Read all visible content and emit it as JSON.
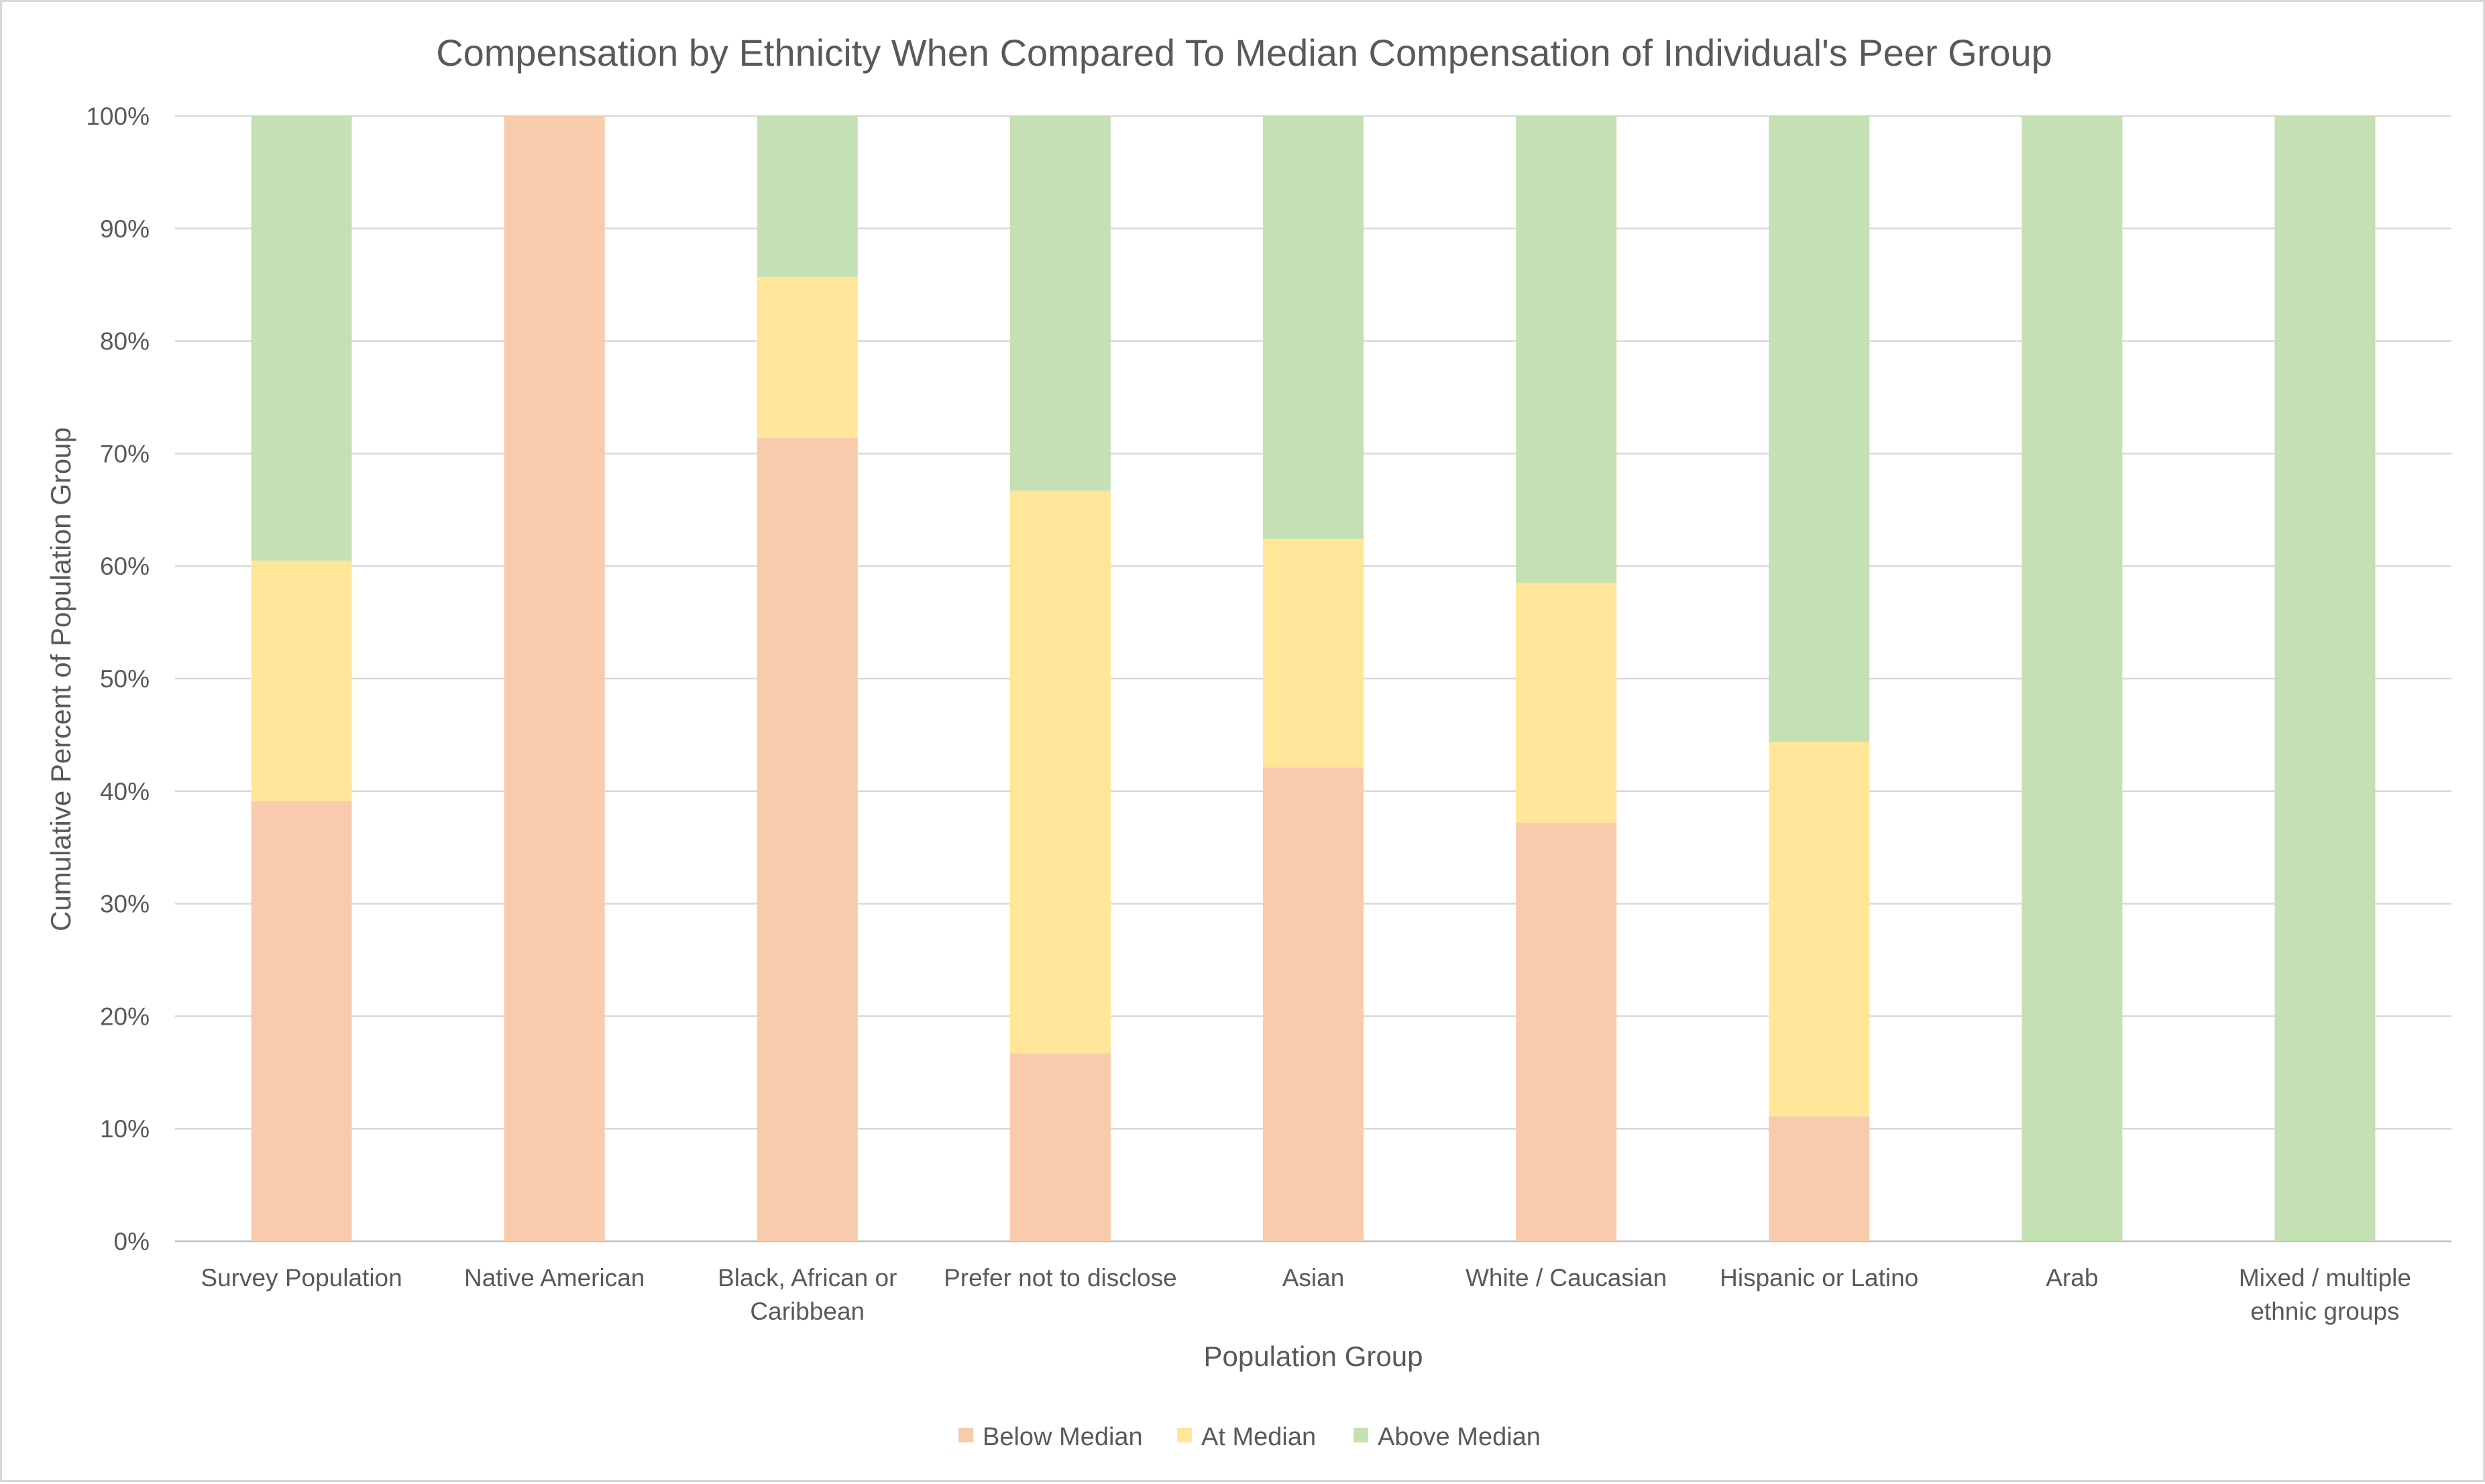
{
  "chart_data": {
    "type": "bar",
    "stacked": true,
    "title": "Compensation by Ethnicity When Compared To Median Compensation of Individual's Peer Group",
    "xlabel": "Population Group",
    "ylabel": "Cumulative Percent of Population Group",
    "ylim": [
      0,
      100
    ],
    "yticks": [
      "0%",
      "10%",
      "20%",
      "30%",
      "40%",
      "50%",
      "60%",
      "70%",
      "80%",
      "90%",
      "100%"
    ],
    "grid": true,
    "legend_position": "bottom",
    "categories": [
      [
        "Survey Population"
      ],
      [
        "Native American"
      ],
      [
        "Black, African or",
        "Caribbean"
      ],
      [
        "Prefer not to disclose"
      ],
      [
        "Asian"
      ],
      [
        "White / Caucasian"
      ],
      [
        "Hispanic or Latino"
      ],
      [
        "Arab"
      ],
      [
        "Mixed / multiple",
        "ethnic groups"
      ]
    ],
    "series": [
      {
        "name": "Below Median",
        "color": "#f8cbad",
        "values": [
          39.1,
          100,
          71.4,
          16.7,
          42.1,
          37.2,
          11.1,
          0,
          0
        ]
      },
      {
        "name": "At Median",
        "color": "#ffe699",
        "values": [
          21.4,
          0,
          14.3,
          50.0,
          20.3,
          21.3,
          33.3,
          0,
          0
        ]
      },
      {
        "name": "Above Median",
        "color": "#c5e0b4",
        "values": [
          39.5,
          0,
          14.3,
          33.3,
          37.6,
          41.5,
          55.6,
          100,
          100
        ]
      }
    ]
  }
}
